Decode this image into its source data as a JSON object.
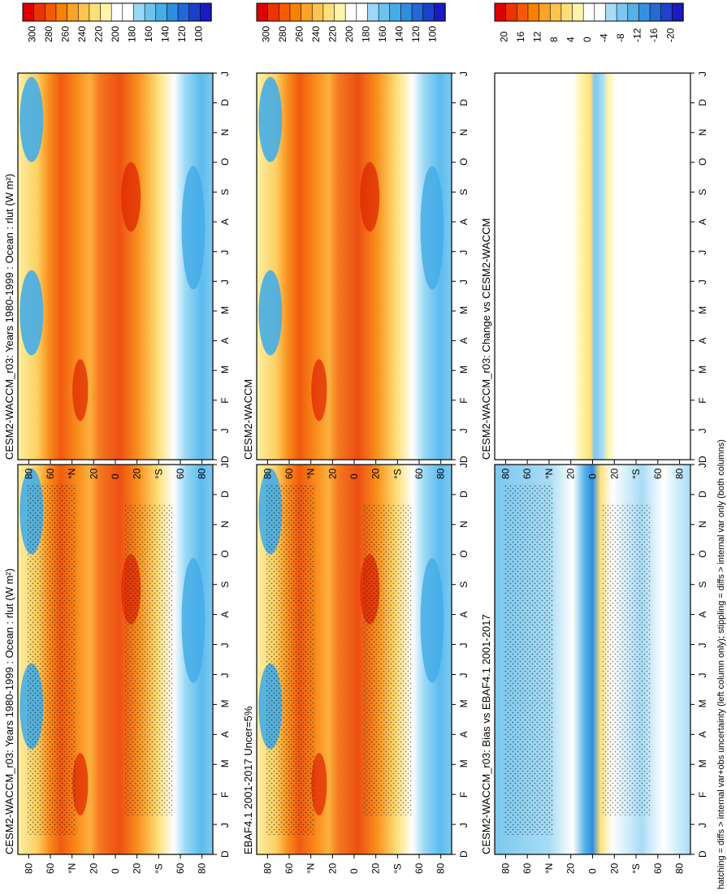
{
  "figure": {
    "footnote": "hatching = diffs > internal var+obs uncertainty (left column only); stippling = diffs > internal var only (both columns)",
    "months": [
      "D",
      "J",
      "F",
      "M",
      "A",
      "M",
      "J",
      "J",
      "A",
      "S",
      "O",
      "N",
      "D",
      "J"
    ],
    "latitude_labels": [
      "80",
      "60",
      "°N",
      "20",
      "0",
      "20",
      "°S",
      "60",
      "80"
    ],
    "colors": {
      "abs_scale": [
        "#dd0000",
        "#ee3300",
        "#f55a00",
        "#fa8000",
        "#fca32a",
        "#fdc550",
        "#fde07a",
        "#fef5aa",
        "#ffffff",
        "#ffffff",
        "#9ad8f5",
        "#6cc4ee",
        "#46ade6",
        "#2f8ee0",
        "#2368d8",
        "#1c40cc",
        "#1a1ac4"
      ],
      "diff_scale": [
        "#dd0000",
        "#ee3300",
        "#f55a00",
        "#fa8000",
        "#fca32a",
        "#fdc550",
        "#fde07a",
        "#fef5aa",
        "#ffffff",
        "#ffffff",
        "#a8dcf5",
        "#7cc8ef",
        "#55b1e8",
        "#3690e0",
        "#2868d6",
        "#1f40ca",
        "#1a1ac0"
      ]
    }
  },
  "chart_data": [
    {
      "type": "heatmap",
      "title": "CESM2-WACCM_r03: Years 1980-1999 : Ocean : rlut (W m²)",
      "column": "left",
      "row": 1,
      "colorbar_labels": [
        "300",
        "280",
        "260",
        "240",
        "220",
        "200",
        "180",
        "160",
        "140",
        "120",
        "100"
      ],
      "colorbar_range": [
        90,
        310
      ]
    },
    {
      "type": "heatmap",
      "title": "EBAF4.1 2001-2017 Uncer=5%",
      "column": "left",
      "row": 2,
      "colorbar_labels": [
        "300",
        "280",
        "260",
        "240",
        "220",
        "200",
        "180",
        "160",
        "140",
        "120",
        "100"
      ],
      "colorbar_range": [
        90,
        310
      ]
    },
    {
      "type": "heatmap",
      "title": "CESM2-WACCM_r03: Bias vs EBAF4.1 2001-2017",
      "column": "left",
      "row": 3,
      "colorbar_labels": [
        "20",
        "16",
        "12",
        "8",
        "4",
        "0",
        "-4",
        "-8",
        "-12",
        "-16",
        "-20"
      ],
      "colorbar_range": [
        -22,
        22
      ]
    },
    {
      "type": "heatmap",
      "title": "CESM2-WACCM_r03: Years 1980-1999 : Ocean : rlut (W m²)",
      "column": "right",
      "row": 1,
      "colorbar_labels": [
        "300",
        "280",
        "260",
        "240",
        "220",
        "200",
        "180",
        "160",
        "140",
        "120",
        "100"
      ],
      "colorbar_range": [
        90,
        310
      ]
    },
    {
      "type": "heatmap",
      "title": "CESM2-WACCM",
      "column": "right",
      "row": 2,
      "colorbar_labels": [
        "300",
        "280",
        "260",
        "240",
        "220",
        "200",
        "180",
        "160",
        "140",
        "120",
        "100"
      ],
      "colorbar_range": [
        90,
        310
      ]
    },
    {
      "type": "heatmap",
      "title": "CESM2-WACCM_r03: Change vs CESM2-WACCM",
      "column": "right",
      "row": 3,
      "colorbar_labels": [
        "20",
        "16",
        "12",
        "8",
        "4",
        "0",
        "-4",
        "-8",
        "-12",
        "-16",
        "-20"
      ],
      "colorbar_range": [
        -22,
        22
      ]
    }
  ]
}
